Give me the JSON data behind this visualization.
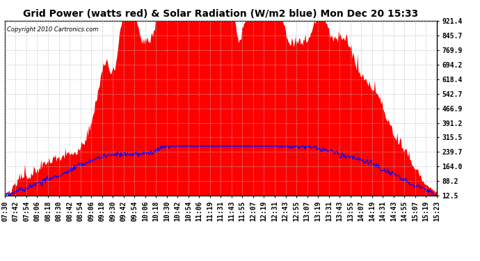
{
  "title": "Grid Power (watts red) & Solar Radiation (W/m2 blue) Mon Dec 20 15:33",
  "copyright": "Copyright 2010 Cartronics.com",
  "yticks": [
    12.5,
    88.2,
    164.0,
    239.7,
    315.5,
    391.2,
    466.9,
    542.7,
    618.4,
    694.2,
    769.9,
    845.7,
    921.4
  ],
  "ymin": 12.5,
  "ymax": 921.4,
  "background_color": "#ffffff",
  "grid_color": "#bbbbbb",
  "fill_color": "#ff0000",
  "line_color": "#0000ff",
  "title_fontsize": 10,
  "tick_fontsize": 7,
  "x_labels": [
    "07:30",
    "07:42",
    "07:54",
    "08:06",
    "08:18",
    "08:30",
    "08:42",
    "08:54",
    "09:06",
    "09:18",
    "09:30",
    "09:42",
    "09:54",
    "10:06",
    "10:18",
    "10:30",
    "10:42",
    "10:54",
    "11:06",
    "11:19",
    "11:31",
    "11:43",
    "11:55",
    "12:07",
    "12:19",
    "12:31",
    "12:43",
    "12:55",
    "13:07",
    "13:19",
    "13:31",
    "13:43",
    "13:55",
    "14:07",
    "14:19",
    "14:31",
    "14:43",
    "14:55",
    "15:07",
    "15:19",
    "15:23"
  ]
}
